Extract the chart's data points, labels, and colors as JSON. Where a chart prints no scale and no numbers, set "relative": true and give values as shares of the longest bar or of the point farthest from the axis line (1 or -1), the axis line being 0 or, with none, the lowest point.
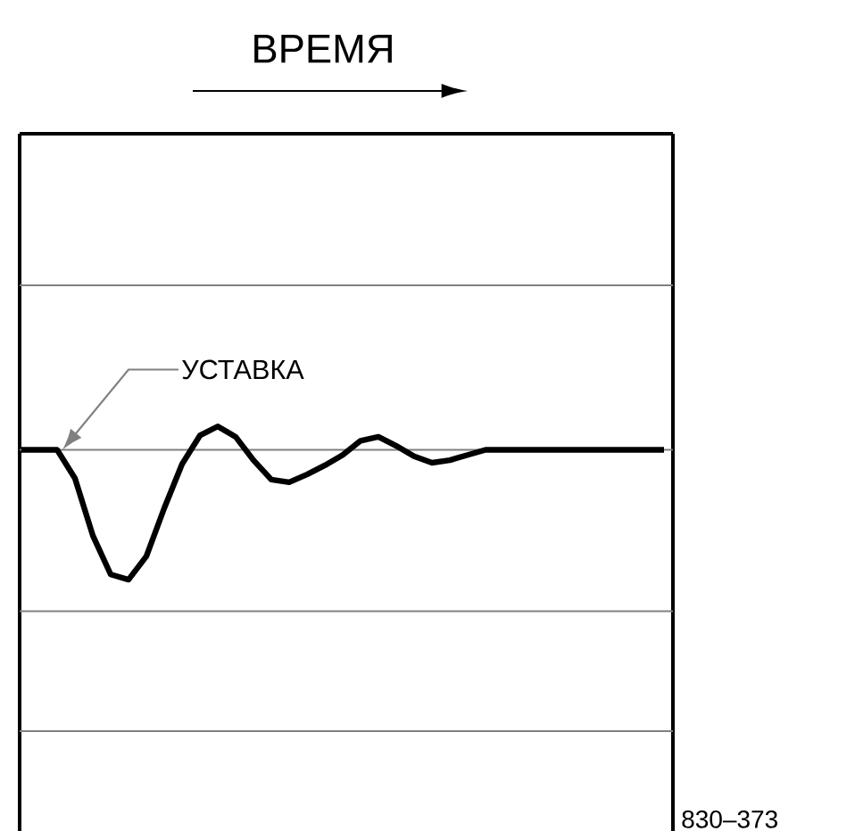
{
  "chart_data": {
    "type": "line",
    "title": "ВРЕМЯ",
    "relative": true,
    "categories": [
      null,
      null,
      null,
      null,
      null,
      null,
      null,
      null,
      null,
      null,
      null,
      null,
      null,
      null,
      null,
      null,
      null,
      null,
      null,
      null,
      null,
      null,
      null,
      null,
      null,
      null,
      null,
      null,
      null,
      null,
      null,
      null,
      null,
      null,
      null,
      null,
      null
    ],
    "series": [
      {
        "color": "#000000",
        "values": [
          0,
          0,
          0,
          -0.22,
          -0.66,
          -0.96,
          -1,
          -0.82,
          -0.45,
          -0.11,
          0.11,
          0.18,
          0.1,
          -0.08,
          -0.23,
          -0.25,
          -0.19,
          -0.12,
          -0.04,
          0.07,
          0.1,
          0.03,
          -0.05,
          -0.1,
          -0.08,
          -0.04,
          0,
          0,
          0,
          0,
          0,
          0,
          0,
          0,
          0,
          0,
          0
        ]
      }
    ],
    "ref_lines": [
      {
        "axis": "y",
        "value": 0,
        "label": "УСТАВКА",
        "color": "#808080"
      }
    ],
    "annotations": [
      "830–373"
    ],
    "line_style": "solid"
  }
}
